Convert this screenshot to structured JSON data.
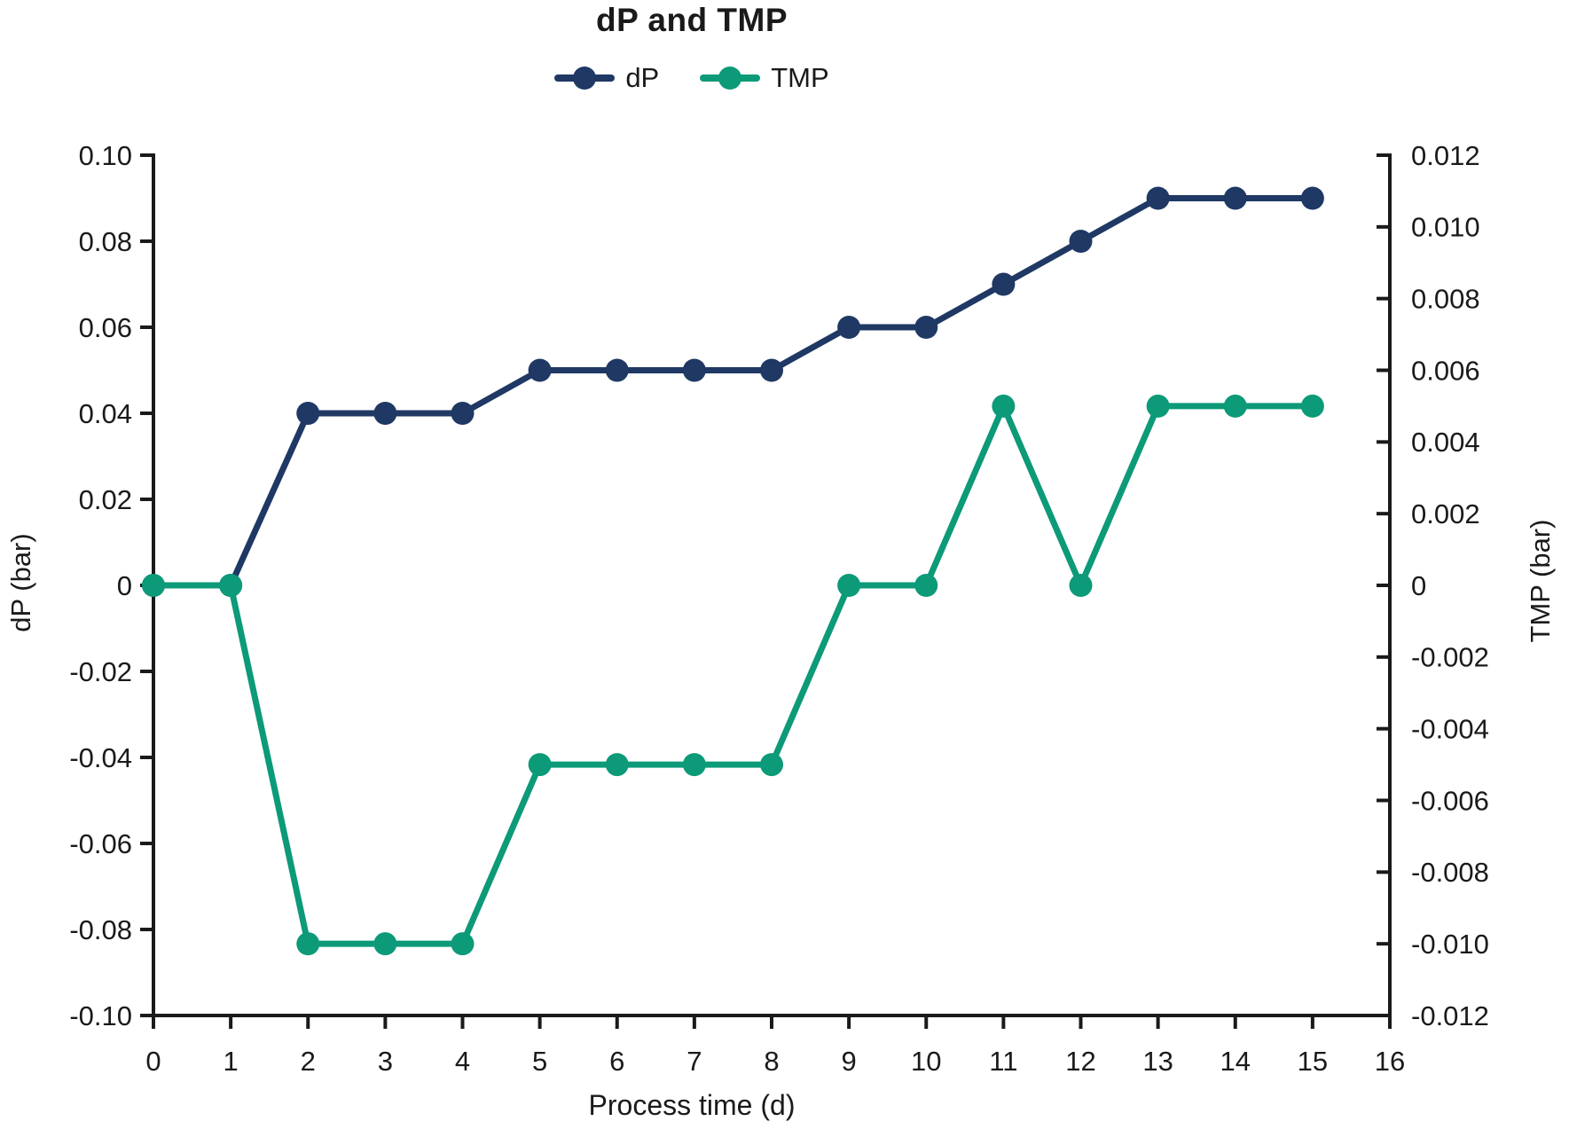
{
  "title": "dP and TMP",
  "legend": [
    {
      "label": "dP",
      "color": "#1f3864"
    },
    {
      "label": "TMP",
      "color": "#0c9a78"
    }
  ],
  "colors": {
    "dp_series": "#1f3864",
    "tmp_series": "#0c9a78",
    "axis": "#1a1a1a",
    "text": "#1a1a1a"
  },
  "chart_data": {
    "type": "line",
    "title": "dP and TMP",
    "xlabel": "Process time (d)",
    "ylabel_left": "dP (bar)",
    "ylabel_right": "TMP (bar)",
    "x": [
      0,
      1,
      2,
      3,
      4,
      5,
      6,
      7,
      8,
      9,
      10,
      11,
      12,
      13,
      14,
      15
    ],
    "series": [
      {
        "name": "dP",
        "axis": "left",
        "color": "#1f3864",
        "values": [
          0,
          0,
          0.04,
          0.04,
          0.04,
          0.05,
          0.05,
          0.05,
          0.05,
          0.06,
          0.06,
          0.07,
          0.08,
          0.09,
          0.09,
          0.09
        ]
      },
      {
        "name": "TMP",
        "axis": "right",
        "color": "#0c9a78",
        "values": [
          0,
          0,
          -0.01,
          -0.01,
          -0.01,
          -0.005,
          -0.005,
          -0.005,
          -0.005,
          0,
          0,
          0.005,
          0,
          0.005,
          0.005,
          0.005
        ]
      }
    ],
    "axes": {
      "x": {
        "min": 0,
        "max": 16,
        "tick_step": 1,
        "tick_labels": [
          "0",
          "1",
          "2",
          "3",
          "4",
          "5",
          "6",
          "7",
          "8",
          "9",
          "10",
          "11",
          "12",
          "13",
          "14",
          "15",
          "16"
        ]
      },
      "left": {
        "min": -0.1,
        "max": 0.1,
        "tick_step": 0.02,
        "tick_labels": [
          "0.10",
          "0.08",
          "0.06",
          "0.04",
          "0.02",
          "0",
          "-0.02",
          "-0.04",
          "-0.06",
          "-0.08",
          "-0.10"
        ]
      },
      "right": {
        "min": -0.012,
        "max": 0.012,
        "tick_step": 0.002,
        "tick_labels": [
          "0.012",
          "0.010",
          "0.008",
          "0.006",
          "0.004",
          "0.002",
          "0",
          "-0.002",
          "-0.004",
          "-0.006",
          "-0.008",
          "-0.010",
          "-0.012"
        ]
      }
    },
    "grid": false,
    "legend_position": "top"
  }
}
